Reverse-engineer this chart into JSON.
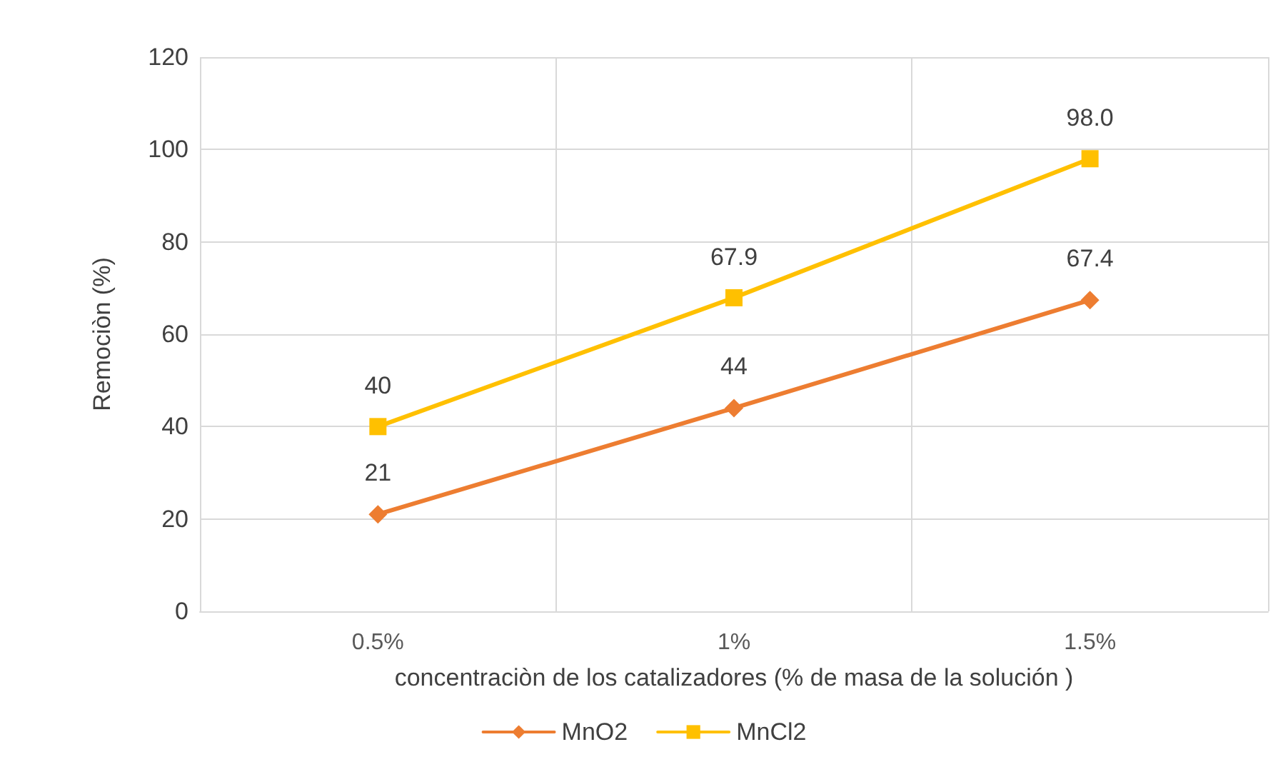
{
  "chart_data": {
    "type": "line",
    "xlabel": "concentraciòn de los catalizadores (% de masa de la solución )",
    "ylabel": "Remociòn (%)",
    "categories": [
      "0.5%",
      "1%",
      "1.5%"
    ],
    "series": [
      {
        "name": "MnO2",
        "color": "#ed7d31",
        "marker": "diamond",
        "values": [
          21,
          44,
          67.4
        ],
        "value_labels": [
          "21",
          "44",
          "67.4"
        ]
      },
      {
        "name": "MnCl2",
        "color": "#ffc000",
        "marker": "square",
        "values": [
          40,
          67.9,
          98.0
        ],
        "value_labels": [
          "40",
          "67.9",
          "98.0"
        ]
      }
    ],
    "ylim": [
      0,
      120
    ],
    "yticks": [
      0,
      20,
      40,
      60,
      80,
      100,
      120
    ],
    "grid": true,
    "legend": "bottom",
    "line_style": "solid"
  }
}
